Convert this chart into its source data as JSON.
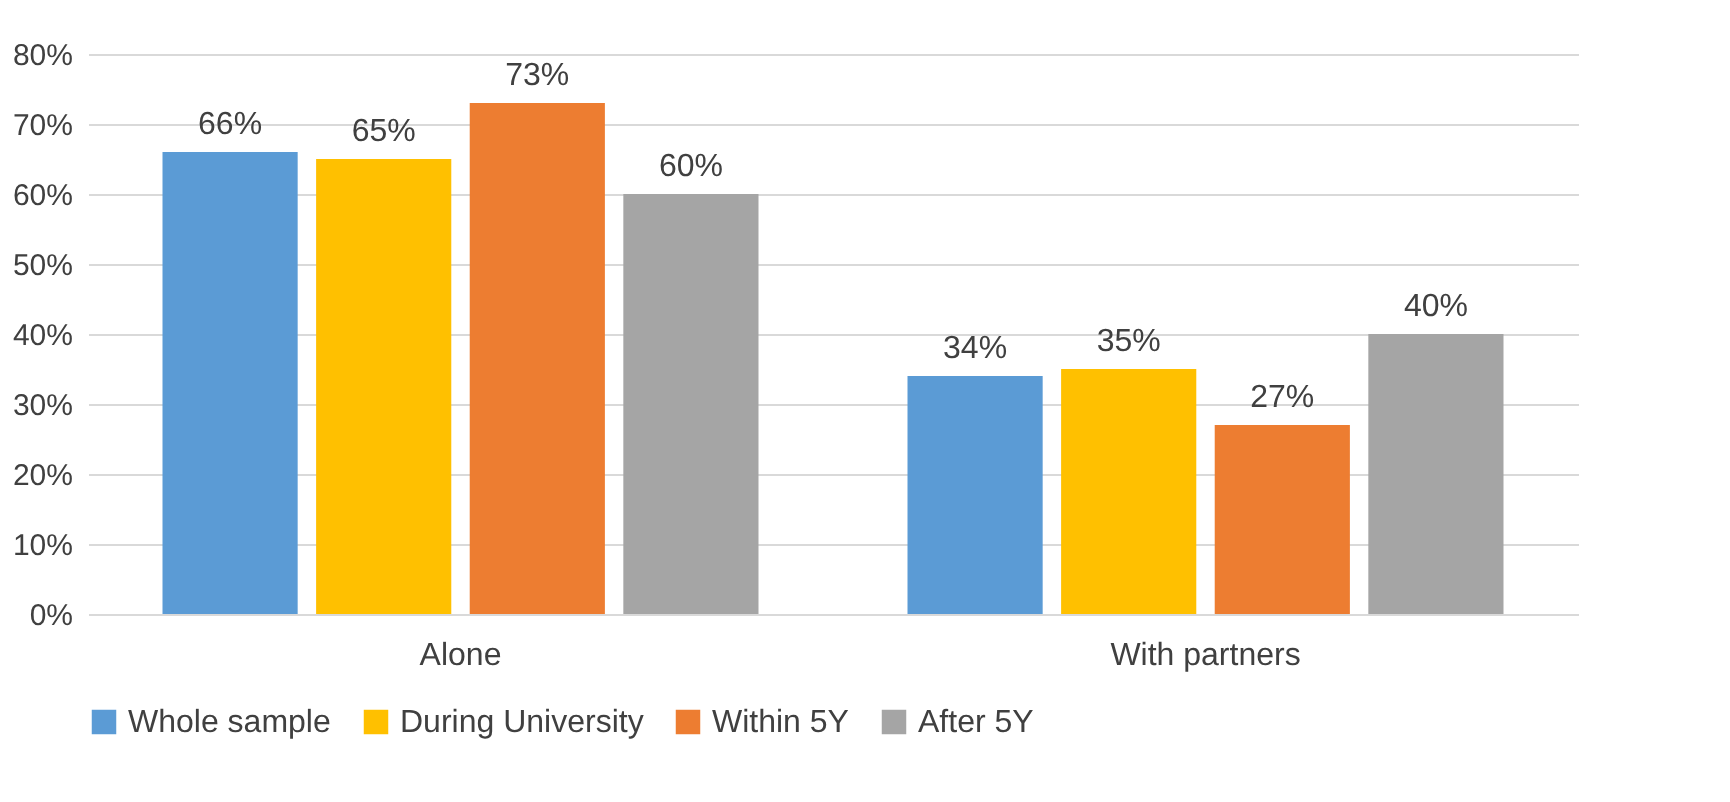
{
  "chart_data": {
    "type": "bar",
    "categories": [
      "Alone",
      "With partners"
    ],
    "series": [
      {
        "name": "Whole sample",
        "color": "#5b9bd5",
        "values": [
          66,
          34
        ],
        "value_labels": [
          "66%",
          "34%"
        ]
      },
      {
        "name": "During University",
        "color": "#ffc000",
        "values": [
          65,
          35
        ],
        "value_labels": [
          "65%",
          "35%"
        ]
      },
      {
        "name": "Within 5Y",
        "color": "#ed7d31",
        "values": [
          73,
          27
        ],
        "value_labels": [
          "73%",
          "27%"
        ]
      },
      {
        "name": "After 5Y",
        "color": "#a5a5a5",
        "values": [
          60,
          40
        ],
        "value_labels": [
          "60%",
          "40%"
        ]
      }
    ],
    "ylim": [
      0,
      80
    ],
    "yticks": [
      {
        "value": 0,
        "label": "0%"
      },
      {
        "value": 10,
        "label": "10%"
      },
      {
        "value": 20,
        "label": "20%"
      },
      {
        "value": 30,
        "label": "30%"
      },
      {
        "value": 40,
        "label": "40%"
      },
      {
        "value": 50,
        "label": "50%"
      },
      {
        "value": 60,
        "label": "60%"
      },
      {
        "value": 70,
        "label": "70%"
      },
      {
        "value": 80,
        "label": "80%"
      }
    ],
    "grid": "y",
    "legend": "bottom"
  }
}
